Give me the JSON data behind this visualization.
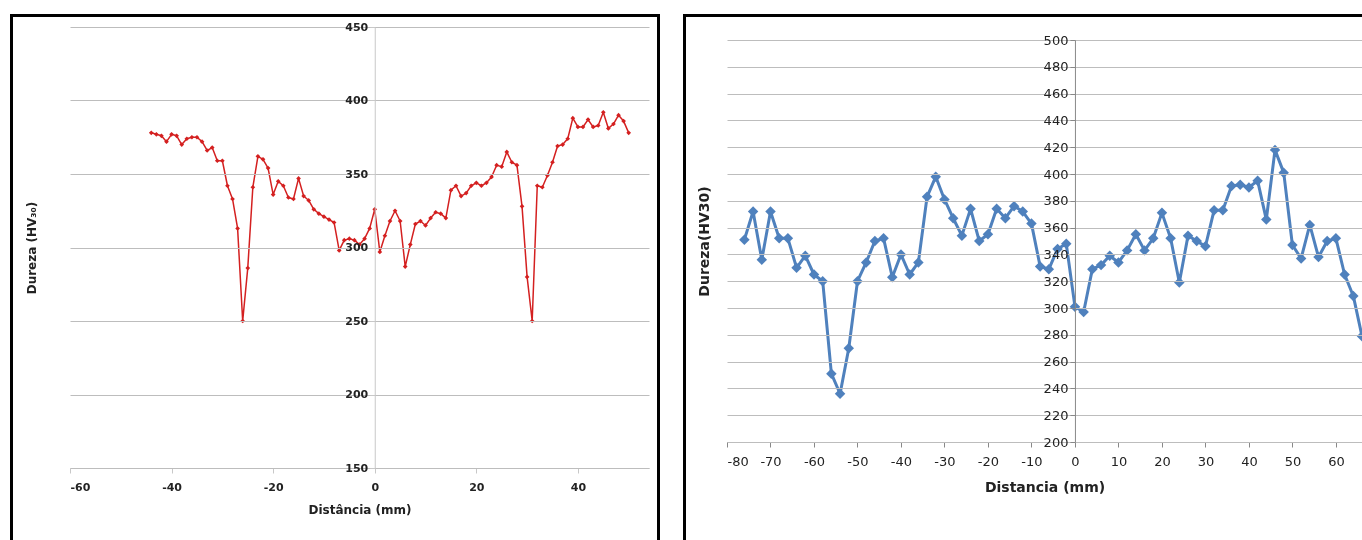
{
  "chart_data": [
    {
      "type": "line",
      "xlabel": "Distância (mm)",
      "ylabel": "Dureza (HV₃₀)",
      "color": "#d42020",
      "marker": "diamond",
      "grid": "y",
      "xlim": [
        -60,
        54
      ],
      "xticks": [
        -60,
        -40,
        -20,
        0,
        20,
        40
      ],
      "ylim": [
        150,
        450
      ],
      "yticks": [
        150,
        200,
        250,
        300,
        350,
        400,
        450
      ],
      "x": [
        -44,
        -43,
        -42,
        -41,
        -40,
        -39,
        -38,
        -37,
        -36,
        -35,
        -34,
        -33,
        -32,
        -31,
        -30,
        -29,
        -28,
        -27,
        -26,
        -25,
        -24,
        -23,
        -22,
        -21,
        -20,
        -19,
        -18,
        -17,
        -16,
        -15,
        -14,
        -13,
        -12,
        -11,
        -10,
        -9,
        -8,
        -7,
        -6,
        -5,
        -4,
        -3,
        -2,
        -1,
        0,
        1,
        2,
        3,
        4,
        5,
        6,
        7,
        8,
        9,
        10,
        11,
        12,
        13,
        14,
        15,
        16,
        17,
        18,
        19,
        20,
        21,
        22,
        23,
        24,
        25,
        26,
        27,
        28,
        29,
        30,
        31,
        32,
        33,
        34,
        35,
        36,
        37,
        38,
        39,
        40,
        41,
        42,
        43,
        44,
        45,
        46,
        47,
        48,
        49,
        50
      ],
      "values": [
        378,
        377,
        376,
        372,
        377,
        376,
        370,
        374,
        375,
        375,
        372,
        366,
        368,
        359,
        359,
        342,
        333,
        313,
        250,
        286,
        341,
        362,
        360,
        354,
        336,
        345,
        342,
        334,
        333,
        347,
        335,
        332,
        326,
        323,
        321,
        319,
        317,
        298,
        305,
        306,
        305,
        302,
        306,
        313,
        326,
        297,
        308,
        318,
        325,
        318,
        287,
        302,
        316,
        318,
        315,
        320,
        324,
        323,
        320,
        339,
        342,
        335,
        337,
        342,
        344,
        342,
        344,
        348,
        356,
        355,
        365,
        358,
        356,
        328,
        280,
        250,
        342,
        341,
        349,
        358,
        369,
        370,
        374,
        388,
        382,
        382,
        387,
        382,
        383,
        392,
        381,
        384,
        390,
        386,
        378
      ]
    },
    {
      "type": "line",
      "xlabel": "Distancia (mm)",
      "ylabel": "Dureza(HV30)",
      "color": "#4f81bd",
      "marker": "diamond",
      "grid": "y",
      "xlim": [
        -80,
        66
      ],
      "xticks": [
        -80,
        -70,
        -60,
        -50,
        -40,
        -30,
        -20,
        -10,
        0,
        10,
        20,
        30,
        40,
        50,
        60
      ],
      "ylim": [
        200,
        500
      ],
      "yticks": [
        200,
        220,
        240,
        260,
        280,
        300,
        320,
        340,
        360,
        380,
        400,
        420,
        440,
        460,
        480,
        500
      ],
      "x": [
        -76,
        -74,
        -72,
        -70,
        -68,
        -66,
        -64,
        -62,
        -60,
        -58,
        -56,
        -54,
        -52,
        -50,
        -48,
        -46,
        -44,
        -42,
        -40,
        -38,
        -36,
        -34,
        -32,
        -30,
        -28,
        -26,
        -24,
        -22,
        -20,
        -18,
        -16,
        -14,
        -12,
        -10,
        -8,
        -6,
        -4,
        -2,
        0,
        2,
        4,
        6,
        8,
        10,
        12,
        14,
        16,
        18,
        20,
        22,
        24,
        26,
        28,
        30,
        32,
        34,
        36,
        38,
        40,
        42,
        44,
        46,
        48,
        50,
        52,
        54,
        56,
        58,
        60,
        62,
        64,
        66
      ],
      "values": [
        351,
        372,
        336,
        372,
        352,
        352,
        330,
        339,
        325,
        320,
        251,
        236,
        270,
        320,
        334,
        350,
        352,
        323,
        340,
        325,
        334,
        383,
        398,
        381,
        367,
        354,
        374,
        350,
        355,
        374,
        367,
        376,
        372,
        363,
        331,
        329,
        344,
        348,
        301,
        297,
        329,
        332,
        339,
        334,
        343,
        355,
        343,
        352,
        371,
        352,
        319,
        354,
        350,
        346,
        373,
        373,
        391,
        392,
        390,
        395,
        366,
        418,
        401,
        347,
        337,
        362,
        338,
        350,
        352,
        325,
        309,
        279
      ]
    }
  ]
}
